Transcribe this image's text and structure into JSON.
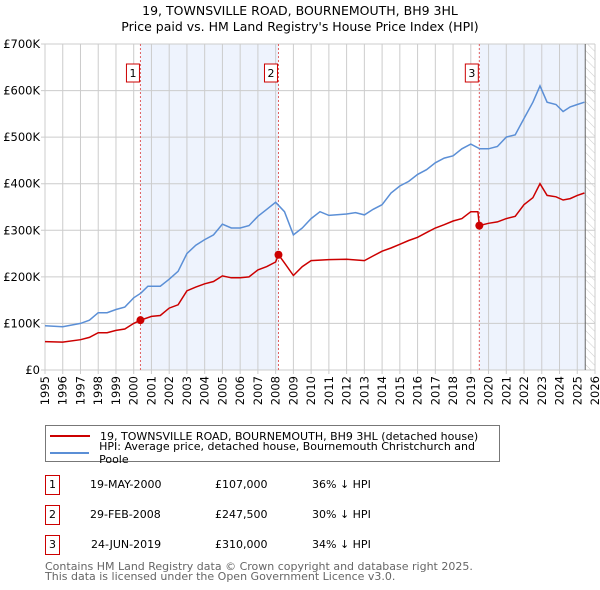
{
  "title": "19, TOWNSVILLE ROAD, BOURNEMOUTH, BH9 3HL",
  "subtitle": "Price paid vs. HM Land Registry's House Price Index (HPI)",
  "colors": {
    "property": "#cc0000",
    "hpi": "#5b8fd6",
    "shade": "#eef3fd",
    "grid": "#cccccc"
  },
  "chart_data": {
    "type": "line",
    "xlim": [
      1995,
      2026
    ],
    "ylim": [
      0,
      700000
    ],
    "x_ticks": [
      1995,
      1996,
      1997,
      1998,
      1999,
      2000,
      2001,
      2002,
      2003,
      2004,
      2005,
      2006,
      2007,
      2008,
      2009,
      2010,
      2011,
      2012,
      2013,
      2014,
      2015,
      2016,
      2017,
      2018,
      2019,
      2020,
      2021,
      2022,
      2023,
      2024,
      2025,
      2026
    ],
    "y_ticks": [
      0,
      100000,
      200000,
      300000,
      400000,
      500000,
      600000,
      700000
    ],
    "y_tick_labels": [
      "£0",
      "£100K",
      "£200K",
      "£300K",
      "£400K",
      "£500K",
      "£600K",
      "£700K"
    ],
    "grid": true,
    "data_end": 2025.45,
    "shaded_ranges": [
      [
        2000.38,
        2008.16
      ],
      [
        2019.48,
        2025.45
      ]
    ],
    "series": [
      {
        "name": "19, TOWNSVILLE ROAD, BOURNEMOUTH, BH9 3HL (detached house)",
        "color": "#cc0000",
        "x": [
          1995,
          1996,
          1997,
          1997.5,
          1998,
          1998.5,
          1999,
          1999.5,
          2000,
          2000.38,
          2001,
          2001.5,
          2002,
          2002.5,
          2003,
          2003.5,
          2004,
          2004.5,
          2005,
          2005.5,
          2006,
          2006.5,
          2007,
          2007.5,
          2008,
          2008.16,
          2008.5,
          2009,
          2009.5,
          2010,
          2011,
          2012,
          2013,
          2013.5,
          2014,
          2014.5,
          2015,
          2015.5,
          2016,
          2016.5,
          2017,
          2017.5,
          2018,
          2018.5,
          2019,
          2019.4,
          2019.48,
          2020,
          2020.5,
          2021,
          2021.5,
          2022,
          2022.5,
          2022.9,
          2023.3,
          2023.8,
          2024.2,
          2024.6,
          2025,
          2025.4
        ],
        "y": [
          61000,
          60000,
          65000,
          70000,
          80000,
          80000,
          85000,
          88000,
          100000,
          107000,
          115000,
          117000,
          133000,
          140000,
          170000,
          178000,
          185000,
          190000,
          202000,
          198000,
          198000,
          200000,
          215000,
          222000,
          232000,
          247500,
          230000,
          203000,
          222000,
          235000,
          237000,
          238000,
          235000,
          245000,
          255000,
          262000,
          270000,
          278000,
          285000,
          295000,
          305000,
          312000,
          320000,
          325000,
          340000,
          340000,
          310000,
          315000,
          318000,
          325000,
          330000,
          355000,
          370000,
          400000,
          375000,
          372000,
          365000,
          368000,
          375000,
          380000
        ]
      },
      {
        "name": "HPI: Average price, detached house, Bournemouth Christchurch and Poole",
        "color": "#5b8fd6",
        "x": [
          1995,
          1996,
          1997,
          1997.5,
          1998,
          1998.5,
          1999,
          1999.5,
          2000,
          2000.4,
          2000.8,
          2001.5,
          2002,
          2002.5,
          2003,
          2003.5,
          2004,
          2004.5,
          2005,
          2005.5,
          2006,
          2006.5,
          2007,
          2007.5,
          2008,
          2008.5,
          2009,
          2009.5,
          2010,
          2010.5,
          2011,
          2012,
          2012.5,
          2013,
          2013.5,
          2014,
          2014.5,
          2015,
          2015.5,
          2016,
          2016.5,
          2017,
          2017.5,
          2018,
          2018.5,
          2019,
          2019.5,
          2020,
          2020.5,
          2021,
          2021.5,
          2022,
          2022.5,
          2022.9,
          2023.3,
          2023.8,
          2024.2,
          2024.6,
          2025,
          2025.4
        ],
        "y": [
          95000,
          93000,
          100000,
          107000,
          123000,
          123000,
          130000,
          135000,
          155000,
          165000,
          180000,
          180000,
          195000,
          212000,
          250000,
          268000,
          280000,
          290000,
          313000,
          305000,
          305000,
          310000,
          330000,
          345000,
          360000,
          340000,
          290000,
          305000,
          325000,
          340000,
          332000,
          335000,
          338000,
          333000,
          345000,
          355000,
          380000,
          395000,
          405000,
          420000,
          430000,
          445000,
          455000,
          460000,
          475000,
          485000,
          475000,
          475000,
          480000,
          500000,
          505000,
          540000,
          575000,
          610000,
          575000,
          570000,
          555000,
          565000,
          570000,
          575000
        ]
      }
    ],
    "sales": [
      {
        "label": "1",
        "x": 2000.38,
        "y": 107000
      },
      {
        "label": "2",
        "x": 2008.16,
        "y": 247500
      },
      {
        "label": "3",
        "x": 2019.48,
        "y": 310000
      }
    ]
  },
  "legend": {
    "property": "19, TOWNSVILLE ROAD, BOURNEMOUTH, BH9 3HL (detached house)",
    "hpi": "HPI: Average price, detached house, Bournemouth Christchurch and Poole"
  },
  "transactions": [
    {
      "num": "1",
      "date": "19-MAY-2000",
      "price": "£107,000",
      "hpi": "36% ↓ HPI"
    },
    {
      "num": "2",
      "date": "29-FEB-2008",
      "price": "£247,500",
      "hpi": "30% ↓ HPI"
    },
    {
      "num": "3",
      "date": "24-JUN-2019",
      "price": "£310,000",
      "hpi": "34% ↓ HPI"
    }
  ],
  "footer": {
    "line1": "Contains HM Land Registry data © Crown copyright and database right 2025.",
    "line2": "This data is licensed under the Open Government Licence v3.0."
  }
}
